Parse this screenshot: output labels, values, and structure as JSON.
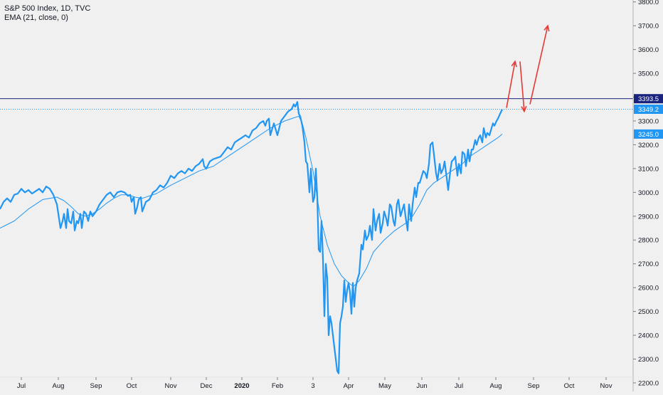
{
  "legend": {
    "title": "S&P 500 Index, 1D, TVC",
    "indicator": "EMA (21, close, 0)"
  },
  "colors": {
    "price": "#2196f3",
    "ema": "#2196f3",
    "resistance": "#1a237e",
    "current_line": "#2196f3",
    "arrows": "#e53935",
    "grid": "#e0e3eb",
    "axis_text": "#131722"
  },
  "chart_data": {
    "type": "line",
    "title": "S&P 500 Index, 1D, TVC",
    "xlabel": "",
    "ylabel": "",
    "ylim": [
      2170,
      3820
    ],
    "x_tick_labels": [
      "Jul",
      "Aug",
      "Sep",
      "Oct",
      "Nov",
      "Dec",
      "2020",
      "Feb",
      "3",
      "Apr",
      "May",
      "Jun",
      "Jul",
      "Aug",
      "Sep",
      "Oct",
      "Nov"
    ],
    "y_tick_labels": [
      "2200.0",
      "2300.0",
      "2400.0",
      "2500.0",
      "2600.0",
      "2700.0",
      "2800.0",
      "2900.0",
      "3000.0",
      "3100.0",
      "3200.0",
      "3300.0",
      "3400.0",
      "3500.0",
      "3600.0",
      "3700.0",
      "3800.0"
    ],
    "y_ticks": [
      2200,
      2300,
      2400,
      2500,
      2600,
      2700,
      2800,
      2900,
      3000,
      3100,
      3200,
      3300,
      3400,
      3500,
      3600,
      3700,
      3800
    ],
    "price_badges": [
      {
        "label": "3393.5",
        "value": 3393.5,
        "style": "resistance"
      },
      {
        "label": "3349.2",
        "value": 3349.2,
        "style": "current"
      },
      {
        "label": "3245.0",
        "value": 3245.0,
        "style": "ema"
      }
    ],
    "grid": false,
    "series": [
      {
        "name": "S&P 500 Index",
        "style": "price",
        "x": [
          0,
          5,
          10,
          15,
          20,
          25,
          30,
          35,
          40,
          45,
          50,
          55,
          60,
          65,
          70,
          75,
          80,
          85,
          88,
          90,
          93,
          95,
          97,
          100,
          103,
          105,
          108,
          110,
          113,
          115,
          118,
          121,
          124,
          127,
          130,
          135,
          140,
          145,
          150,
          155,
          160,
          165,
          170,
          175,
          180,
          183,
          185,
          188,
          190,
          193,
          195,
          198,
          200,
          205,
          210,
          215,
          220,
          225,
          230,
          235,
          240,
          245,
          250,
          255,
          260,
          265,
          270,
          275,
          280,
          285,
          287,
          290,
          295,
          300,
          305,
          310,
          315,
          320,
          325,
          330,
          335,
          340,
          345,
          350,
          355,
          360,
          365,
          370,
          373,
          375,
          378,
          380,
          385,
          390,
          395,
          400,
          405,
          410,
          413,
          415,
          418,
          420,
          422,
          425,
          428,
          430,
          432,
          435,
          437,
          440,
          442,
          444,
          446,
          448,
          450,
          452,
          454,
          456,
          458,
          460,
          462,
          464,
          466,
          468,
          470,
          472,
          474,
          476,
          478,
          480,
          482,
          484,
          486,
          488,
          490,
          492,
          494,
          496,
          498,
          500,
          502,
          505,
          508,
          510,
          513,
          515,
          518,
          520,
          523,
          525,
          528,
          530,
          533,
          535,
          538,
          540,
          543,
          545,
          548,
          550,
          553,
          555,
          558,
          560,
          563,
          565,
          568,
          570,
          573,
          575,
          578,
          580,
          583,
          585,
          588,
          590,
          593,
          595,
          598,
          600,
          603,
          605,
          608,
          610,
          613,
          615,
          618,
          620,
          623,
          625,
          628,
          630,
          633,
          635,
          638,
          640,
          643,
          645,
          648,
          650,
          653,
          655,
          658,
          660,
          663,
          665,
          668,
          670,
          673,
          675,
          678,
          680,
          683,
          685,
          688,
          690,
          693,
          695,
          698,
          700,
          703,
          706
        ],
        "values": [
          2930,
          2960,
          2975,
          2960,
          2990,
          2995,
          3015,
          3000,
          3010,
          2995,
          3005,
          3015,
          3000,
          3025,
          3015,
          2990,
          2950,
          2850,
          2880,
          2910,
          2850,
          2930,
          2880,
          2870,
          2920,
          2840,
          2880,
          2870,
          2910,
          2850,
          2920,
          2910,
          2880,
          2920,
          2900,
          2920,
          2950,
          2970,
          2990,
          3000,
          2980,
          3000,
          3005,
          3000,
          2985,
          2990,
          2960,
          2980,
          2910,
          2940,
          2970,
          2980,
          2920,
          2960,
          2970,
          3000,
          3010,
          3030,
          3020,
          3040,
          3070,
          3060,
          3080,
          3090,
          3080,
          3100,
          3090,
          3110,
          3120,
          3140,
          3110,
          3100,
          3130,
          3140,
          3145,
          3150,
          3170,
          3190,
          3180,
          3210,
          3220,
          3230,
          3240,
          3230,
          3260,
          3270,
          3290,
          3300,
          3280,
          3300,
          3310,
          3240,
          3290,
          3240,
          3300,
          3320,
          3340,
          3350,
          3370,
          3360,
          3380,
          3330,
          3320,
          3280,
          3210,
          3130,
          3120,
          3000,
          3100,
          2960,
          2980,
          3100,
          2980,
          2760,
          2750,
          2880,
          2720,
          2480,
          2700,
          2640,
          2400,
          2480,
          2450,
          2400,
          2350,
          2300,
          2250,
          2240,
          2450,
          2480,
          2520,
          2630,
          2540,
          2590,
          2620,
          2580,
          2490,
          2620,
          2520,
          2600,
          2630,
          2660,
          2780,
          2760,
          2840,
          2800,
          2820,
          2860,
          2800,
          2930,
          2840,
          2880,
          2910,
          2830,
          2870,
          2920,
          2890,
          2860,
          2950,
          2940,
          2880,
          2860,
          2950,
          2970,
          2900,
          2920,
          2950,
          2900,
          2840,
          2950,
          2880,
          2950,
          3020,
          2980,
          3040,
          3040,
          3070,
          3090,
          3080,
          3060,
          3120,
          3200,
          3210,
          3160,
          3080,
          3050,
          3120,
          3080,
          3100,
          3130,
          3060,
          3010,
          3090,
          3130,
          3140,
          3150,
          3070,
          3120,
          3080,
          3170,
          3160,
          3110,
          3180,
          3130,
          3180,
          3180,
          3220,
          3200,
          3230,
          3240,
          3210,
          3270,
          3230,
          3250,
          3240,
          3260,
          3290,
          3280,
          3300,
          3310,
          3330,
          3349
        ]
      },
      {
        "name": "EMA (21, close, 0)",
        "style": "ema",
        "x": [
          0,
          20,
          40,
          60,
          80,
          90,
          100,
          110,
          120,
          130,
          140,
          150,
          160,
          170,
          180,
          190,
          200,
          220,
          240,
          260,
          280,
          300,
          320,
          340,
          360,
          380,
          400,
          410,
          420,
          425,
          430,
          440,
          450,
          460,
          470,
          480,
          490,
          497,
          505,
          515,
          525,
          540,
          555,
          570,
          580,
          590,
          600,
          610,
          620,
          630,
          640,
          650,
          660,
          670,
          680,
          690,
          700,
          706
        ],
        "values": [
          2850,
          2880,
          2930,
          2970,
          2980,
          2965,
          2940,
          2910,
          2900,
          2910,
          2930,
          2955,
          2975,
          2990,
          2990,
          2980,
          2975,
          2995,
          3030,
          3060,
          3090,
          3110,
          3150,
          3190,
          3230,
          3270,
          3300,
          3310,
          3320,
          3290,
          3230,
          3090,
          2900,
          2780,
          2700,
          2650,
          2620,
          2605,
          2630,
          2680,
          2750,
          2800,
          2840,
          2870,
          2900,
          2950,
          3010,
          3040,
          3060,
          3080,
          3100,
          3120,
          3150,
          3170,
          3190,
          3210,
          3230,
          3245
        ]
      }
    ],
    "levels": [
      {
        "name": "resistance",
        "value": 3393.5
      },
      {
        "name": "current",
        "value": 3349.2
      }
    ],
    "annotations": [
      {
        "type": "arrow",
        "from": [
          712,
          3355
        ],
        "to": [
          724,
          3550
        ]
      },
      {
        "type": "arrow",
        "from": [
          731,
          3550
        ],
        "to": [
          737,
          3340
        ]
      },
      {
        "type": "arrow",
        "from": [
          745,
          3370
        ],
        "to": [
          770,
          3700
        ]
      }
    ]
  }
}
